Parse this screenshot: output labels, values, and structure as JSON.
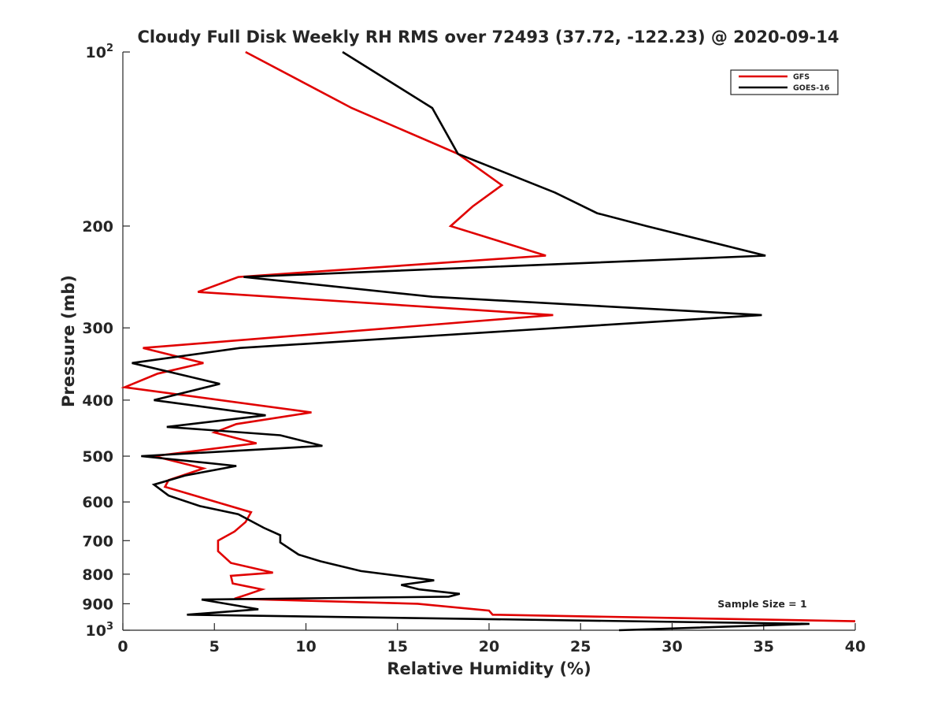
{
  "chart_data": {
    "type": "line",
    "title": "Cloudy Full Disk Weekly RH RMS over 72493 (37.72, -122.23) @ 2020-09-14",
    "xlabel": "Relative Humidity (%)",
    "ylabel": "Pressure (mb)",
    "xlim": [
      0,
      40
    ],
    "ylim": [
      100,
      1000
    ],
    "y_scale": "log",
    "y_inverted": true,
    "grid": false,
    "legend_position": "top-right",
    "annotation": "Sample Size = 1",
    "x_ticks": [
      0,
      5,
      10,
      15,
      20,
      25,
      30,
      35,
      40
    ],
    "y_ticks": [
      {
        "value": 100,
        "base": "10",
        "exp": "2"
      },
      {
        "value": 200,
        "label": "200"
      },
      {
        "value": 300,
        "label": "300"
      },
      {
        "value": 400,
        "label": "400"
      },
      {
        "value": 500,
        "label": "500"
      },
      {
        "value": 600,
        "label": "600"
      },
      {
        "value": 700,
        "label": "700"
      },
      {
        "value": 800,
        "label": "800"
      },
      {
        "value": 900,
        "label": "900"
      },
      {
        "value": 1000,
        "base": "10",
        "exp": "3"
      }
    ],
    "series": [
      {
        "name": "GFS",
        "color": "#e00000",
        "points": [
          [
            6.7,
            100
          ],
          [
            12.5,
            125
          ],
          [
            18.3,
            150
          ],
          [
            20.7,
            170
          ],
          [
            19.1,
            185
          ],
          [
            17.9,
            200
          ],
          [
            23.1,
            225
          ],
          [
            6.3,
            245
          ],
          [
            4.1,
            260
          ],
          [
            23.5,
            285
          ],
          [
            1.1,
            325
          ],
          [
            4.4,
            345
          ],
          [
            1.9,
            360
          ],
          [
            0.1,
            380
          ],
          [
            10.3,
            420
          ],
          [
            6.2,
            440
          ],
          [
            5.0,
            455
          ],
          [
            7.3,
            475
          ],
          [
            1.7,
            500
          ],
          [
            4.4,
            525
          ],
          [
            2.5,
            550
          ],
          [
            2.3,
            565
          ],
          [
            7.0,
            625
          ],
          [
            6.7,
            650
          ],
          [
            6.1,
            675
          ],
          [
            5.2,
            700
          ],
          [
            5.2,
            730
          ],
          [
            5.9,
            765
          ],
          [
            8.2,
            795
          ],
          [
            5.9,
            805
          ],
          [
            6.0,
            830
          ],
          [
            7.6,
            850
          ],
          [
            6.9,
            865
          ],
          [
            6.1,
            882
          ],
          [
            16.1,
            900
          ],
          [
            20.0,
            925
          ],
          [
            20.2,
            940
          ],
          [
            40.0,
            965
          ]
        ]
      },
      {
        "name": "GOES-16",
        "color": "#000000",
        "points": [
          [
            12.0,
            100
          ],
          [
            16.9,
            125
          ],
          [
            18.3,
            150
          ],
          [
            23.6,
            175
          ],
          [
            25.9,
            190
          ],
          [
            28.6,
            200
          ],
          [
            35.1,
            225
          ],
          [
            6.6,
            245
          ],
          [
            16.9,
            265
          ],
          [
            34.9,
            285
          ],
          [
            6.4,
            325
          ],
          [
            0.5,
            345
          ],
          [
            5.3,
            375
          ],
          [
            1.7,
            400
          ],
          [
            7.8,
            425
          ],
          [
            2.4,
            445
          ],
          [
            8.6,
            460
          ],
          [
            10.9,
            480
          ],
          [
            1.0,
            500
          ],
          [
            6.2,
            520
          ],
          [
            3.4,
            540
          ],
          [
            1.7,
            560
          ],
          [
            2.5,
            585
          ],
          [
            4.2,
            610
          ],
          [
            6.3,
            630
          ],
          [
            7.7,
            665
          ],
          [
            8.6,
            685
          ],
          [
            8.6,
            705
          ],
          [
            9.6,
            740
          ],
          [
            10.8,
            760
          ],
          [
            13.0,
            790
          ],
          [
            17.0,
            820
          ],
          [
            15.2,
            835
          ],
          [
            16.2,
            850
          ],
          [
            18.4,
            865
          ],
          [
            17.8,
            875
          ],
          [
            4.3,
            885
          ],
          [
            7.4,
            920
          ],
          [
            3.5,
            940
          ],
          [
            37.5,
            975
          ],
          [
            27.1,
            1000
          ]
        ]
      }
    ]
  }
}
